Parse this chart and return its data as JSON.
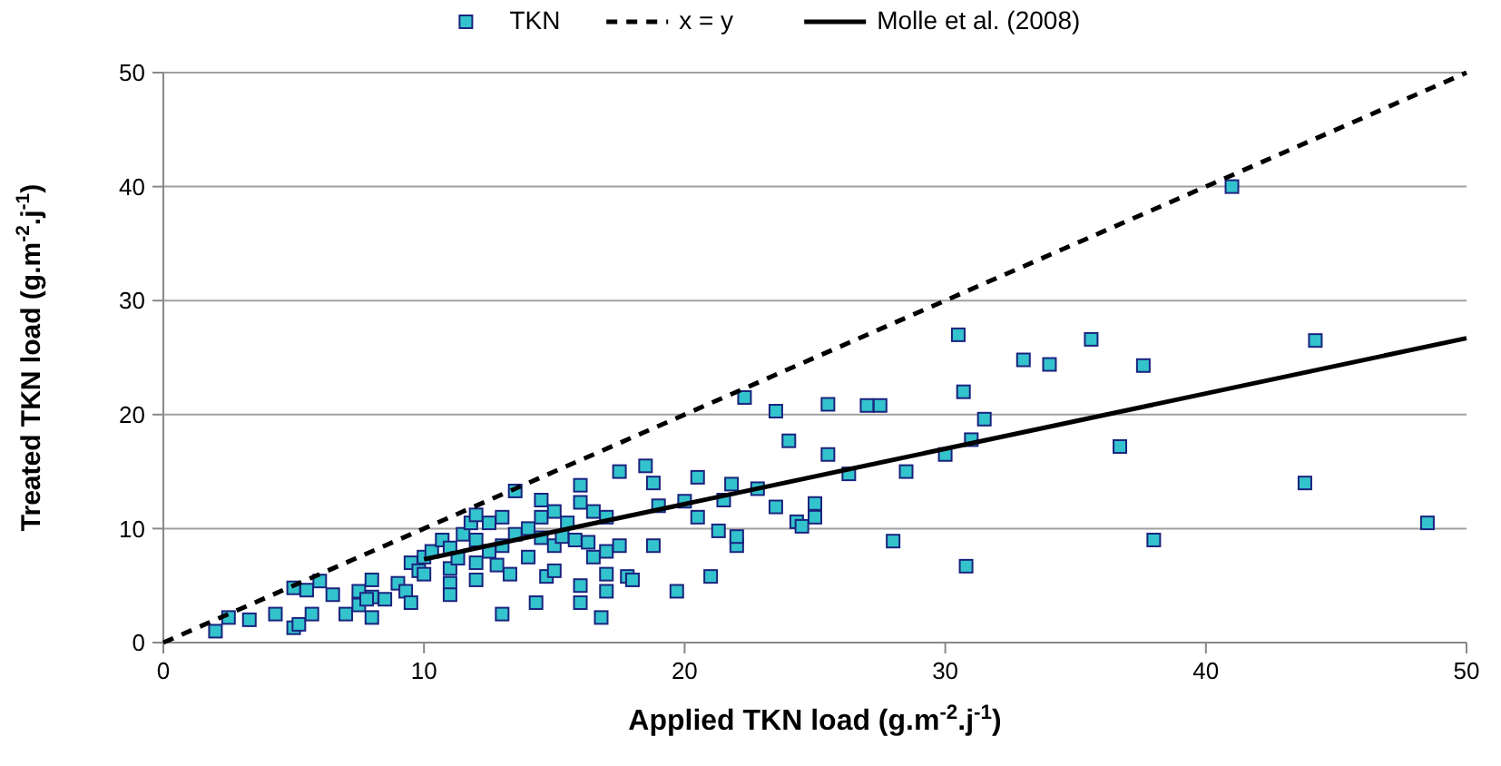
{
  "chart_data": {
    "type": "scatter",
    "xlabel": "Applied TKN load (g.m$^{-2}$.j$^{-1}$)",
    "ylabel": "Treated TKN load (g.m$^{-2}$.j$^{-1}$)",
    "xlim": [
      0,
      50
    ],
    "ylim": [
      0,
      50
    ],
    "xticks": [
      0,
      10,
      20,
      30,
      40,
      50
    ],
    "yticks": [
      0,
      10,
      20,
      30,
      40,
      50
    ],
    "grid": "y",
    "legend": "top",
    "series": [
      {
        "name": "TKN",
        "marker": "square",
        "color": "#33c3cc",
        "x": [
          2,
          2.5,
          3.3,
          4.3,
          5,
          5.2,
          5,
          5.5,
          6,
          6.5,
          5.7,
          7,
          7.5,
          7.5,
          8,
          8,
          8,
          7.8,
          8.5,
          9,
          9.3,
          9.5,
          9.8,
          9.5,
          10,
          10,
          10.3,
          10.7,
          11,
          11,
          11,
          11,
          11.3,
          11.5,
          11.8,
          12,
          12,
          12,
          12,
          12.5,
          12.5,
          12.8,
          13,
          13,
          13,
          13.3,
          13.5,
          13.5,
          14,
          14,
          14.3,
          14.5,
          14.5,
          14.5,
          14.7,
          15,
          15,
          15,
          15.3,
          15.5,
          15.8,
          16,
          16,
          16,
          16,
          16.3,
          16.5,
          16.5,
          16.8,
          17,
          17,
          17,
          17,
          17.5,
          17.5,
          17.8,
          18,
          18.5,
          18.8,
          18.8,
          19,
          19.7,
          20,
          20.5,
          20.5,
          21,
          21.5,
          21.3,
          21.8,
          22,
          22,
          22.3,
          22.8,
          23.5,
          23.5,
          24,
          24.3,
          24.5,
          25,
          25,
          25.5,
          25.5,
          26.3,
          27,
          27.5,
          28,
          28.5,
          30,
          30.5,
          30.7,
          30.8,
          31,
          31.5,
          33,
          34,
          35.6,
          36.7,
          37.6,
          38,
          41,
          43.8,
          44.2,
          48.5
        ],
        "values": [
          1,
          2.2,
          2,
          2.5,
          1.3,
          1.6,
          4.8,
          4.6,
          5.4,
          4.2,
          2.5,
          2.5,
          3.3,
          4.5,
          4,
          2.2,
          5.5,
          3.8,
          3.8,
          5.2,
          4.5,
          7,
          6.3,
          3.5,
          6,
          7.5,
          8,
          9,
          8.3,
          6.5,
          5.2,
          4.2,
          7.4,
          9.5,
          10.5,
          11.2,
          9,
          7,
          5.5,
          8,
          10.5,
          6.8,
          8.5,
          11,
          2.5,
          6,
          13.3,
          9.5,
          10,
          7.5,
          3.5,
          12.5,
          11,
          9.2,
          5.8,
          11.5,
          8.5,
          6.3,
          9.3,
          10.5,
          9,
          13.8,
          12.3,
          5,
          3.5,
          8.8,
          11.5,
          7.5,
          2.2,
          11,
          6,
          4.5,
          8,
          15,
          8.5,
          5.8,
          5.5,
          15.5,
          14,
          8.5,
          12,
          4.5,
          12.4,
          14.5,
          11,
          5.8,
          12.5,
          9.8,
          13.9,
          8.5,
          9.3,
          21.5,
          13.5,
          20.3,
          11.9,
          17.7,
          10.6,
          10.2,
          11,
          12.2,
          16.5,
          20.9,
          14.8,
          20.8,
          20.8,
          8.9,
          15,
          16.5,
          27,
          22,
          6.7,
          17.8,
          19.6,
          24.8,
          24.4,
          26.6,
          17.2,
          24.3,
          9,
          40,
          14,
          26.5,
          10.5
        ]
      },
      {
        "name": "x = y",
        "type": "line",
        "color": "#000000",
        "line_style": "dashed",
        "x": [
          0,
          50
        ],
        "values": [
          0,
          50
        ]
      },
      {
        "name": "Molle et al. (2008)",
        "type": "line",
        "color": "#000000",
        "line_style": "solid",
        "x": [
          10,
          50
        ],
        "values": [
          7.3,
          26.7
        ]
      }
    ]
  }
}
